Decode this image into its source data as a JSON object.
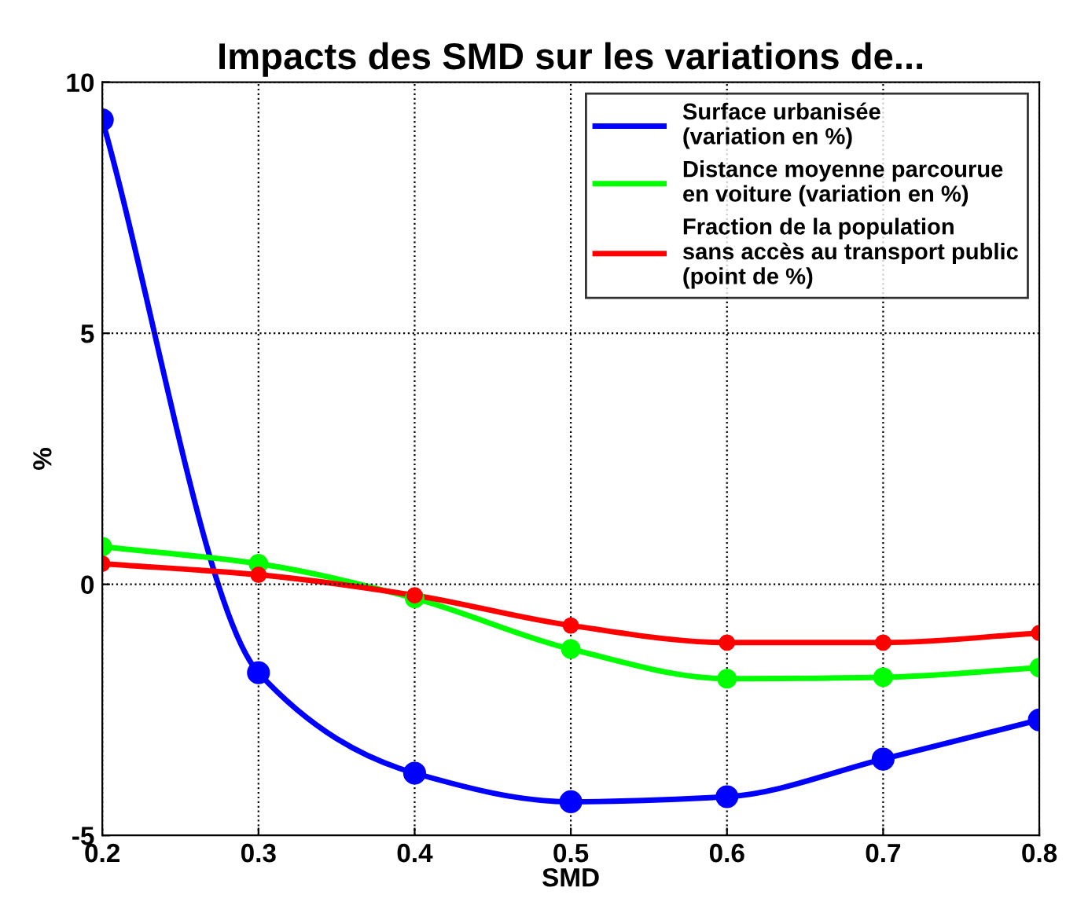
{
  "chart_data": {
    "type": "line",
    "title": "Impacts des SMD sur les variations de...",
    "xlabel": "SMD",
    "ylabel": "%",
    "x": [
      0.2,
      0.3,
      0.4,
      0.5,
      0.6,
      0.7,
      0.8
    ],
    "series": [
      {
        "name": "Surface urbanisée\n(variation en %)",
        "color": "#0000ff",
        "values": [
          9.25,
          -1.76,
          -3.76,
          -4.33,
          -4.23,
          -3.48,
          -2.7
        ]
      },
      {
        "name": "Distance moyenne parcourue\nen voiture (variation en %)",
        "color": "#00ff00",
        "values": [
          0.75,
          0.41,
          -0.28,
          -1.29,
          -1.88,
          -1.85,
          -1.66
        ]
      },
      {
        "name": "Fraction de la population\nsans accès au transport public\n(point de %)",
        "color": "#ff0000",
        "values": [
          0.41,
          0.19,
          -0.22,
          -0.82,
          -1.16,
          -1.16,
          -0.97
        ]
      }
    ],
    "xlim": [
      0.2,
      0.8
    ],
    "xticks": [
      0.2,
      0.3,
      0.4,
      0.5,
      0.6,
      0.7,
      0.8
    ],
    "ylim": [
      -5,
      10
    ],
    "yticks": [
      -5,
      0,
      5,
      10
    ],
    "grid": true,
    "legend": "top right",
    "marker": "circle",
    "line_style": "solid"
  }
}
